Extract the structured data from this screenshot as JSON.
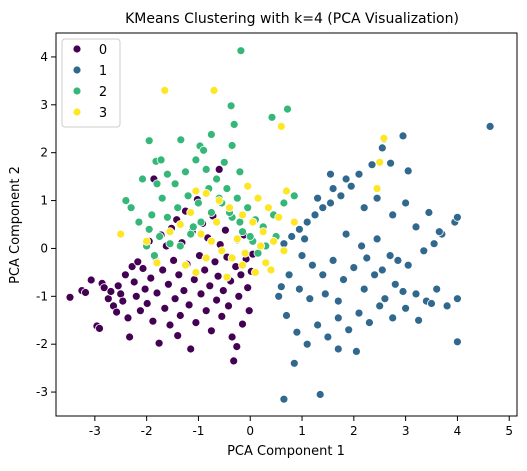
{
  "chart_data": {
    "type": "scatter",
    "title": "KMeans Clustering with k=4 (PCA Visualization)",
    "xlabel": "PCA Component 1",
    "ylabel": "PCA Component 2",
    "xlim": [
      -3.75,
      5.15
    ],
    "ylim": [
      -3.5,
      4.5
    ],
    "xticks": [
      -3,
      -2,
      -1,
      0,
      1,
      2,
      3,
      4,
      5
    ],
    "yticks": [
      -3,
      -2,
      -1,
      0,
      1,
      2,
      3,
      4
    ],
    "xtick_labels": [
      "-3",
      "-2",
      "-1",
      "0",
      "1",
      "2",
      "3",
      "4",
      "5"
    ],
    "ytick_labels": [
      "-3",
      "-2",
      "-1",
      "0",
      "1",
      "2",
      "3",
      "4"
    ],
    "grid": false,
    "legend_position": "top-left",
    "series": [
      {
        "name": "0",
        "color": "#440154",
        "points": [
          [
            -3.48,
            -1.02
          ],
          [
            -3.25,
            -0.88
          ],
          [
            -3.18,
            -0.92
          ],
          [
            -3.07,
            -0.66
          ],
          [
            -2.96,
            -1.62
          ],
          [
            -2.91,
            -1.67
          ],
          [
            -2.86,
            -0.73
          ],
          [
            -2.82,
            -0.82
          ],
          [
            -2.74,
            -1.05
          ],
          [
            -2.69,
            -0.9
          ],
          [
            -2.64,
            -1.2
          ],
          [
            -2.58,
            -1.33
          ],
          [
            -2.55,
            -0.78
          ],
          [
            -2.5,
            -0.95
          ],
          [
            -2.46,
            -1.1
          ],
          [
            -2.41,
            -0.55
          ],
          [
            -2.36,
            -1.45
          ],
          [
            -2.33,
            -1.85
          ],
          [
            -2.28,
            -0.38
          ],
          [
            -2.24,
            -0.7
          ],
          [
            -2.2,
            -1.0
          ],
          [
            -2.17,
            -0.28
          ],
          [
            -2.12,
            -1.3
          ],
          [
            -2.07,
            -0.42
          ],
          [
            -2.03,
            -0.85
          ],
          [
            -1.99,
            -1.15
          ],
          [
            -1.95,
            0.15
          ],
          [
            -1.92,
            -0.62
          ],
          [
            -1.88,
            -1.52
          ],
          [
            -1.84,
            -0.18
          ],
          [
            -1.8,
            -0.93
          ],
          [
            -1.76,
            -1.98
          ],
          [
            -1.72,
            0.28
          ],
          [
            -1.69,
            -0.45
          ],
          [
            -1.65,
            -1.25
          ],
          [
            -1.62,
            0.05
          ],
          [
            -1.58,
            -0.75
          ],
          [
            -1.55,
            -1.6
          ],
          [
            -1.52,
            0.42
          ],
          [
            -1.48,
            -0.25
          ],
          [
            -1.45,
            -1.05
          ],
          [
            -1.42,
            0.6
          ],
          [
            -1.38,
            -0.55
          ],
          [
            -1.35,
            -1.4
          ],
          [
            -1.32,
            0.12
          ],
          [
            -1.28,
            -0.88
          ],
          [
            -1.25,
            0.78
          ],
          [
            -1.22,
            -0.33
          ],
          [
            -1.18,
            -1.18
          ],
          [
            -1.15,
            -2.1
          ],
          [
            -1.12,
            0.35
          ],
          [
            -1.08,
            -0.65
          ],
          [
            -1.05,
            -1.55
          ],
          [
            -1.02,
            1.02
          ],
          [
            -0.98,
            -0.15
          ],
          [
            -0.95,
            -0.95
          ],
          [
            -0.92,
            0.52
          ],
          [
            -0.88,
            -0.45
          ],
          [
            -0.85,
            -1.3
          ],
          [
            -0.82,
            0.22
          ],
          [
            -0.78,
            -0.78
          ],
          [
            -0.75,
            -1.72
          ],
          [
            -0.72,
            0.68
          ],
          [
            -0.68,
            -0.28
          ],
          [
            -0.65,
            -1.08
          ],
          [
            -0.62,
            -0.58
          ],
          [
            -0.58,
            0.08
          ],
          [
            -0.55,
            -1.42
          ],
          [
            -0.52,
            -0.88
          ],
          [
            -0.48,
            0.38
          ],
          [
            -0.45,
            -0.18
          ],
          [
            -0.42,
            -1.2
          ],
          [
            -0.38,
            -0.68
          ],
          [
            -0.35,
            -1.85
          ],
          [
            -0.32,
            -2.35
          ],
          [
            -0.28,
            -0.38
          ],
          [
            -0.25,
            0.18
          ],
          [
            -0.22,
            -1.0
          ],
          [
            -0.18,
            -0.55
          ],
          [
            -0.15,
            -1.58
          ],
          [
            -0.12,
            0.28
          ],
          [
            -0.08,
            -0.22
          ],
          [
            -0.05,
            -0.82
          ],
          [
            -0.02,
            -1.3
          ],
          [
            0.02,
            -0.48
          ],
          [
            0.05,
            -0.12
          ],
          [
            -1.86,
            1.45
          ],
          [
            -1.4,
            -1.82
          ],
          [
            -0.6,
            1.65
          ],
          [
            -0.26,
            -2.05
          ]
        ]
      },
      {
        "name": "1",
        "color": "#31688e",
        "points": [
          [
            4.63,
            2.55
          ],
          [
            2.95,
            2.35
          ],
          [
            2.58,
            2.28
          ],
          [
            2.55,
            2.1
          ],
          [
            2.71,
            1.78
          ],
          [
            3.05,
            1.62
          ],
          [
            2.35,
            1.75
          ],
          [
            2.1,
            1.55
          ],
          [
            1.95,
            1.3
          ],
          [
            1.75,
            1.1
          ],
          [
            1.55,
            0.95
          ],
          [
            1.4,
            0.85
          ],
          [
            1.25,
            0.7
          ],
          [
            1.1,
            0.55
          ],
          [
            0.95,
            0.4
          ],
          [
            0.8,
            0.25
          ],
          [
            0.65,
            0.1
          ],
          [
            1.3,
            1.05
          ],
          [
            1.6,
            1.25
          ],
          [
            1.85,
            1.45
          ],
          [
            2.2,
            0.85
          ],
          [
            2.45,
            1.05
          ],
          [
            2.75,
            0.7
          ],
          [
            3.0,
            0.95
          ],
          [
            3.2,
            0.45
          ],
          [
            3.45,
            0.75
          ],
          [
            3.7,
            0.3
          ],
          [
            3.95,
            0.55
          ],
          [
            4.0,
            0.65
          ],
          [
            3.65,
            0.35
          ],
          [
            1.0,
            -0.15
          ],
          [
            1.2,
            -0.35
          ],
          [
            1.4,
            -0.55
          ],
          [
            1.6,
            -0.25
          ],
          [
            1.8,
            -0.65
          ],
          [
            2.0,
            -0.4
          ],
          [
            2.2,
            -0.85
          ],
          [
            2.4,
            -0.55
          ],
          [
            2.6,
            -1.05
          ],
          [
            2.8,
            -0.75
          ],
          [
            3.0,
            -1.25
          ],
          [
            3.2,
            -0.95
          ],
          [
            3.4,
            -1.1
          ],
          [
            3.6,
            -0.85
          ],
          [
            3.8,
            -1.2
          ],
          [
            4.0,
            -1.05
          ],
          [
            2.95,
            -0.9
          ],
          [
            2.75,
            -1.45
          ],
          [
            2.5,
            -1.2
          ],
          [
            2.3,
            -1.55
          ],
          [
            2.1,
            -1.35
          ],
          [
            1.9,
            -1.7
          ],
          [
            1.7,
            -1.45
          ],
          [
            1.5,
            -1.85
          ],
          [
            1.3,
            -1.6
          ],
          [
            1.1,
            -2.0
          ],
          [
            0.9,
            -1.75
          ],
          [
            0.7,
            -1.4
          ],
          [
            0.55,
            -1.0
          ],
          [
            0.65,
            -3.15
          ],
          [
            1.35,
            -3.05
          ],
          [
            0.85,
            -2.4
          ],
          [
            1.7,
            -2.1
          ],
          [
            2.05,
            -2.15
          ],
          [
            4.0,
            -1.95
          ],
          [
            1.55,
            1.55
          ],
          [
            1.85,
            0.3
          ],
          [
            2.15,
            0.05
          ],
          [
            2.45,
            0.2
          ],
          [
            2.7,
            -0.15
          ],
          [
            3.05,
            -0.35
          ],
          [
            3.35,
            -0.05
          ],
          [
            3.55,
            0.1
          ],
          [
            0.75,
            -0.55
          ],
          [
            0.95,
            -0.85
          ],
          [
            1.15,
            -1.05
          ],
          [
            1.45,
            -0.95
          ],
          [
            1.7,
            -1.1
          ],
          [
            2.25,
            -0.2
          ],
          [
            2.55,
            -0.45
          ],
          [
            2.85,
            -0.25
          ],
          [
            3.25,
            -1.5
          ],
          [
            3.5,
            -1.15
          ],
          [
            0.6,
            -0.8
          ],
          [
            1.05,
            0.2
          ]
        ]
      },
      {
        "name": "2",
        "color": "#35b779",
        "points": [
          [
            -0.18,
            4.13
          ],
          [
            0.72,
            2.91
          ],
          [
            0.42,
            2.74
          ],
          [
            -0.37,
            2.98
          ],
          [
            -0.31,
            2.59
          ],
          [
            -0.75,
            2.38
          ],
          [
            -0.97,
            2.14
          ],
          [
            -1.34,
            2.27
          ],
          [
            -1.95,
            2.25
          ],
          [
            -1.82,
            1.82
          ],
          [
            -1.72,
            1.85
          ],
          [
            -2.08,
            1.45
          ],
          [
            -1.8,
            1.35
          ],
          [
            -1.6,
            1.55
          ],
          [
            -1.45,
            1.35
          ],
          [
            -1.25,
            1.6
          ],
          [
            -1.05,
            1.85
          ],
          [
            -0.85,
            1.65
          ],
          [
            -0.65,
            1.45
          ],
          [
            -0.45,
            1.25
          ],
          [
            -0.25,
            1.05
          ],
          [
            -0.05,
            0.85
          ],
          [
            -2.3,
            0.85
          ],
          [
            -2.15,
            0.55
          ],
          [
            -1.95,
            0.4
          ],
          [
            -1.75,
            0.25
          ],
          [
            -1.55,
            0.1
          ],
          [
            -1.35,
            0.05
          ],
          [
            -1.15,
            0.3
          ],
          [
            -0.95,
            0.55
          ],
          [
            -0.75,
            0.75
          ],
          [
            -0.55,
            0.95
          ],
          [
            -0.35,
            0.65
          ],
          [
            -0.15,
            0.35
          ],
          [
            0.05,
            0.15
          ],
          [
            0.25,
            0.45
          ],
          [
            0.45,
            0.7
          ],
          [
            0.65,
            0.95
          ],
          [
            0.85,
            1.1
          ],
          [
            0.3,
            0.05
          ],
          [
            0.15,
            -0.1
          ],
          [
            -2.0,
            0.05
          ],
          [
            -1.85,
            -0.15
          ],
          [
            -1.6,
            0.65
          ],
          [
            -1.4,
            0.85
          ],
          [
            -1.2,
            1.1
          ],
          [
            -1.0,
            0.95
          ],
          [
            -0.8,
            1.25
          ],
          [
            -0.6,
            1.05
          ],
          [
            -0.4,
            0.75
          ],
          [
            -0.2,
            0.55
          ],
          [
            0.0,
            0.25
          ],
          [
            -2.4,
            1.0
          ],
          [
            -1.7,
            1.05
          ],
          [
            -0.9,
            2.05
          ],
          [
            0.1,
            0.6
          ],
          [
            0.5,
            0.25
          ],
          [
            -0.35,
            2.15
          ],
          [
            -1.9,
            0.7
          ],
          [
            -0.2,
            1.6
          ],
          [
            -1.1,
            0.45
          ],
          [
            -0.5,
            1.8
          ]
        ]
      },
      {
        "name": "3",
        "color": "#fde725",
        "points": [
          [
            -1.65,
            3.3
          ],
          [
            -0.7,
            3.3
          ],
          [
            0.6,
            2.55
          ],
          [
            2.58,
            2.3
          ],
          [
            2.5,
            1.8
          ],
          [
            2.45,
            1.25
          ],
          [
            -1.05,
            1.2
          ],
          [
            -0.85,
            1.15
          ],
          [
            -0.6,
            1.0
          ],
          [
            -0.4,
            0.85
          ],
          [
            -0.15,
            0.7
          ],
          [
            0.05,
            0.55
          ],
          [
            0.25,
            0.35
          ],
          [
            0.45,
            0.15
          ],
          [
            0.65,
            -0.05
          ],
          [
            -0.95,
            0.3
          ],
          [
            -0.75,
            0.15
          ],
          [
            -0.55,
            -0.05
          ],
          [
            -0.35,
            -0.2
          ],
          [
            -0.15,
            -0.35
          ],
          [
            0.1,
            -0.5
          ],
          [
            0.3,
            -0.3
          ],
          [
            -1.25,
            -0.35
          ],
          [
            -1.05,
            -0.5
          ],
          [
            -0.85,
            -0.2
          ],
          [
            -2.0,
            0.15
          ],
          [
            -2.5,
            0.3
          ],
          [
            -1.55,
            0.35
          ],
          [
            -1.35,
            0.5
          ],
          [
            0.15,
            1.05
          ],
          [
            0.35,
            0.85
          ],
          [
            -0.05,
            1.3
          ],
          [
            -0.25,
            0.2
          ],
          [
            0.55,
            0.65
          ],
          [
            0.4,
            -0.45
          ],
          [
            -0.45,
            -0.6
          ],
          [
            -1.8,
            -0.3
          ],
          [
            0.85,
            0.55
          ],
          [
            -0.65,
            0.55
          ],
          [
            0.2,
            0.05
          ],
          [
            -1.15,
            0.75
          ],
          [
            0.7,
            1.2
          ],
          [
            -0.1,
            -0.1
          ]
        ]
      }
    ]
  }
}
